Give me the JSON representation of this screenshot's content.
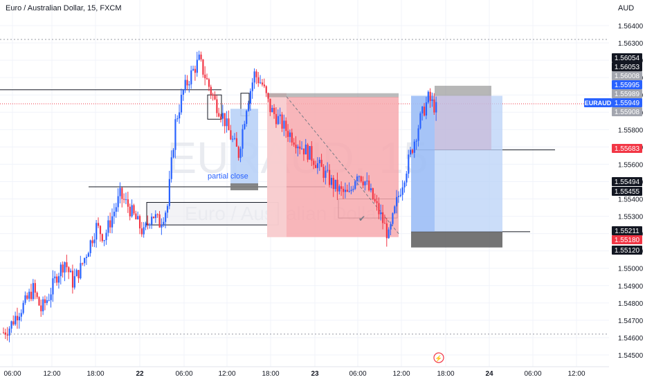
{
  "header": {
    "title": "Euro / Australian Dollar, 15, FXCM",
    "unit": "AUD"
  },
  "watermark": {
    "symbol": "EURAUD, 15",
    "name": "Euro / Australian Dollar"
  },
  "annotations": {
    "partial_close": "partial close",
    "check": "✔",
    "alert_icon": "lightning-icon"
  },
  "colors": {
    "bull": "#2962ff",
    "bear": "#f23645",
    "loss_zone": "#f7a9ae",
    "profit_zone": "#b9d1f7",
    "stop_zone": "#7b7b7b",
    "grid": "#f0f3fa",
    "badge_blue": "#2962ff",
    "badge_red": "#f23645",
    "badge_dark": "#131722"
  },
  "chart_data": {
    "type": "candlestick",
    "symbol": "EURAUD",
    "timeframe": "15",
    "ylim": [
      1.5444,
      1.5652
    ],
    "y_ticks": [
      "1.56400",
      "1.56300",
      "1.56200",
      "1.56100",
      "1.56000",
      "1.55900",
      "1.55800",
      "1.55700",
      "1.55600",
      "1.55500",
      "1.55400",
      "1.55300",
      "1.55200",
      "1.55100",
      "1.55000",
      "1.54900",
      "1.54800",
      "1.54700",
      "1.54600",
      "1.54500"
    ],
    "x_ticks": [
      "06:00",
      "12:00",
      "18:00",
      "22",
      "06:00",
      "12:00",
      "18:00",
      "23",
      "06:00",
      "12:00",
      "18:00",
      "24",
      "06:00",
      "12:00"
    ],
    "price_badges": [
      {
        "label": "1.56054",
        "style": "dark"
      },
      {
        "label": "1.56053",
        "style": "dark"
      },
      {
        "label": "1.56008",
        "style": "grey"
      },
      {
        "label": "1.55995",
        "style": "blue"
      },
      {
        "label": "1.55989",
        "style": "grey"
      },
      {
        "label": "1.55949",
        "style": "blue"
      },
      {
        "label": "1.55908",
        "style": "grey"
      },
      {
        "label": "1.55683",
        "style": "red"
      },
      {
        "label": "1.55494",
        "style": "dark"
      },
      {
        "label": "1.55455",
        "style": "dark"
      },
      {
        "label": "1.55211",
        "style": "dark"
      },
      {
        "label": "1.55180",
        "style": "red"
      },
      {
        "label": "1.55120",
        "style": "dark"
      }
    ],
    "symbol_tag": "EURAUD",
    "last_price": "1.55949",
    "candles_close_path": [
      1.5466,
      1.5474,
      1.548,
      1.5488,
      1.5476,
      1.5484,
      1.5496,
      1.5504,
      1.5492,
      1.55,
      1.5512,
      1.5524,
      1.5518,
      1.553,
      1.5542,
      1.5536,
      1.5528,
      1.552,
      1.5532,
      1.5526,
      1.5536,
      1.5584,
      1.5602,
      1.5612,
      1.562,
      1.5608,
      1.5596,
      1.5588,
      1.5576,
      1.5566,
      1.5594,
      1.5612,
      1.5606,
      1.5592,
      1.5586,
      1.558,
      1.5575,
      1.557,
      1.5566,
      1.556,
      1.5554,
      1.5548,
      1.5544,
      1.5542,
      1.5556,
      1.555,
      1.554,
      1.553,
      1.5518,
      1.5538,
      1.5554,
      1.557,
      1.5586,
      1.5598,
      1.5592
    ]
  }
}
